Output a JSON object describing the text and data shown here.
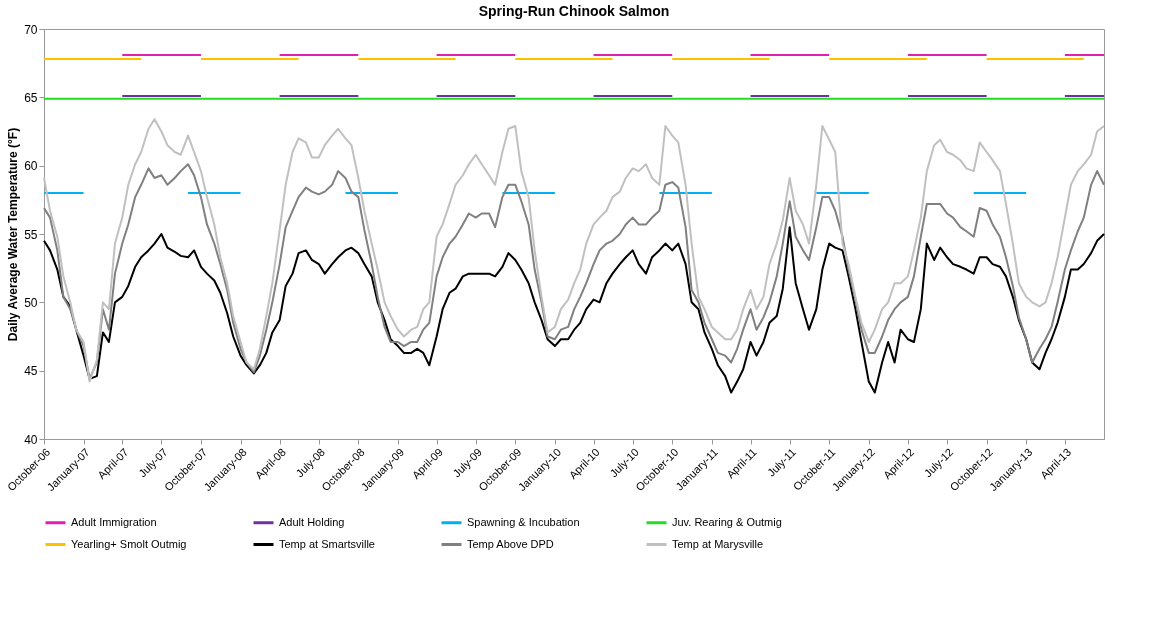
{
  "chart_data": {
    "type": "line",
    "title": "Spring-Run Chinook Salmon",
    "ylabel": "Daily Average Water Temperature (°F)",
    "xlim": [
      "2006-10-01",
      "2013-07-01"
    ],
    "ylim": [
      40,
      70
    ],
    "yticks": [
      40,
      45,
      50,
      55,
      60,
      65,
      70
    ],
    "xticks": [
      {
        "value": "2006-10-01",
        "label": "October-06"
      },
      {
        "value": "2007-01-01",
        "label": "January-07"
      },
      {
        "value": "2007-04-01",
        "label": "April-07"
      },
      {
        "value": "2007-07-01",
        "label": "July-07"
      },
      {
        "value": "2007-10-01",
        "label": "October-07"
      },
      {
        "value": "2008-01-01",
        "label": "January-08"
      },
      {
        "value": "2008-04-01",
        "label": "April-08"
      },
      {
        "value": "2008-07-01",
        "label": "July-08"
      },
      {
        "value": "2008-10-01",
        "label": "October-08"
      },
      {
        "value": "2009-01-01",
        "label": "January-09"
      },
      {
        "value": "2009-04-01",
        "label": "April-09"
      },
      {
        "value": "2009-07-01",
        "label": "July-09"
      },
      {
        "value": "2009-10-01",
        "label": "October-09"
      },
      {
        "value": "2010-01-01",
        "label": "January-10"
      },
      {
        "value": "2010-04-01",
        "label": "April-10"
      },
      {
        "value": "2010-07-01",
        "label": "July-10"
      },
      {
        "value": "2010-10-01",
        "label": "October-10"
      },
      {
        "value": "2011-01-01",
        "label": "January-11"
      },
      {
        "value": "2011-04-01",
        "label": "April-11"
      },
      {
        "value": "2011-07-01",
        "label": "July-11"
      },
      {
        "value": "2011-10-01",
        "label": "October-11"
      },
      {
        "value": "2012-01-01",
        "label": "January-12"
      },
      {
        "value": "2012-04-01",
        "label": "April-12"
      },
      {
        "value": "2012-07-01",
        "label": "July-12"
      },
      {
        "value": "2012-10-01",
        "label": "October-12"
      },
      {
        "value": "2013-01-01",
        "label": "January-13"
      },
      {
        "value": "2013-04-01",
        "label": "April-13"
      }
    ],
    "grid": false,
    "legend": "bottom",
    "x": [
      "2006-10-01",
      "2006-10-15",
      "2006-11-01",
      "2006-11-15",
      "2006-12-01",
      "2006-12-15",
      "2007-01-01",
      "2007-01-15",
      "2007-02-01",
      "2007-02-15",
      "2007-03-01",
      "2007-03-15",
      "2007-04-01",
      "2007-04-15",
      "2007-05-01",
      "2007-05-15",
      "2007-06-01",
      "2007-06-15",
      "2007-07-01",
      "2007-07-15",
      "2007-08-01",
      "2007-08-15",
      "2007-09-01",
      "2007-09-15",
      "2007-10-01",
      "2007-10-15",
      "2007-11-01",
      "2007-11-15",
      "2007-12-01",
      "2007-12-15",
      "2008-01-01",
      "2008-01-15",
      "2008-02-01",
      "2008-02-15",
      "2008-03-01",
      "2008-03-15",
      "2008-04-01",
      "2008-04-15",
      "2008-05-01",
      "2008-05-15",
      "2008-06-01",
      "2008-06-15",
      "2008-07-01",
      "2008-07-15",
      "2008-08-01",
      "2008-08-15",
      "2008-09-01",
      "2008-09-15",
      "2008-10-01",
      "2008-10-15",
      "2008-11-01",
      "2008-11-15",
      "2008-12-01",
      "2008-12-15",
      "2009-01-01",
      "2009-01-15",
      "2009-02-01",
      "2009-02-15",
      "2009-03-01",
      "2009-03-15",
      "2009-04-01",
      "2009-04-15",
      "2009-05-01",
      "2009-05-15",
      "2009-06-01",
      "2009-06-15",
      "2009-07-01",
      "2009-07-15",
      "2009-08-01",
      "2009-08-15",
      "2009-09-01",
      "2009-09-15",
      "2009-10-01",
      "2009-10-15",
      "2009-11-01",
      "2009-11-15",
      "2009-12-01",
      "2009-12-15",
      "2010-01-01",
      "2010-01-15",
      "2010-02-01",
      "2010-02-15",
      "2010-03-01",
      "2010-03-15",
      "2010-04-01",
      "2010-04-15",
      "2010-05-01",
      "2010-05-15",
      "2010-06-01",
      "2010-06-15",
      "2010-07-01",
      "2010-07-15",
      "2010-08-01",
      "2010-08-15",
      "2010-09-01",
      "2010-09-15",
      "2010-10-01",
      "2010-10-15",
      "2010-11-01",
      "2010-11-15",
      "2010-12-01",
      "2010-12-15",
      "2011-01-01",
      "2011-01-15",
      "2011-02-01",
      "2011-02-15",
      "2011-03-01",
      "2011-03-15",
      "2011-04-01",
      "2011-04-15",
      "2011-05-01",
      "2011-05-15",
      "2011-06-01",
      "2011-06-15",
      "2011-07-01",
      "2011-07-15",
      "2011-08-01",
      "2011-08-15",
      "2011-09-01",
      "2011-09-15",
      "2011-10-01",
      "2011-10-15",
      "2011-11-01",
      "2011-11-15",
      "2011-12-01",
      "2011-12-15",
      "2012-01-01",
      "2012-01-15",
      "2012-02-01",
      "2012-02-15",
      "2012-03-01",
      "2012-03-15",
      "2012-04-01",
      "2012-04-15",
      "2012-05-01",
      "2012-05-15",
      "2012-06-01",
      "2012-06-15",
      "2012-07-01",
      "2012-07-15",
      "2012-08-01",
      "2012-08-15",
      "2012-09-01",
      "2012-09-15",
      "2012-10-01",
      "2012-10-15",
      "2012-11-01",
      "2012-11-15",
      "2012-12-01",
      "2012-12-15",
      "2013-01-01",
      "2013-01-15",
      "2013-02-01",
      "2013-02-15",
      "2013-03-01",
      "2013-03-15",
      "2013-04-01",
      "2013-04-15",
      "2013-05-01",
      "2013-05-15",
      "2013-06-01",
      "2013-06-15",
      "2013-07-01"
    ],
    "series": [
      {
        "name": "Adult Immigration",
        "color": "#e020b0",
        "x": [
          "2007-04-01",
          "2007-10-01",
          "2007-12-01",
          "2008-04-01",
          "2008-10-01",
          "2008-12-01",
          "2009-04-01",
          "2009-10-01",
          "2009-12-01",
          "2010-04-01",
          "2010-10-01",
          "2010-12-01",
          "2011-04-01",
          "2011-10-01",
          "2011-12-01",
          "2012-04-01",
          "2012-10-01",
          "2012-12-01",
          "2013-04-01",
          "2013-07-01"
        ],
        "values": [
          68.1,
          68.1,
          null,
          68.1,
          68.1,
          null,
          68.1,
          68.1,
          null,
          68.1,
          68.1,
          null,
          68.1,
          68.1,
          null,
          68.1,
          68.1,
          null,
          68.1,
          68.1
        ]
      },
      {
        "name": "Adult Holding",
        "color": "#7030a0",
        "x": [
          "2007-04-01",
          "2007-10-01",
          "2007-12-01",
          "2008-04-01",
          "2008-10-01",
          "2008-12-01",
          "2009-04-01",
          "2009-10-01",
          "2009-12-01",
          "2010-04-01",
          "2010-10-01",
          "2010-12-01",
          "2011-04-01",
          "2011-10-01",
          "2011-12-01",
          "2012-04-01",
          "2012-10-01",
          "2012-12-01",
          "2013-04-01",
          "2013-07-01"
        ],
        "values": [
          65.1,
          65.1,
          null,
          65.1,
          65.1,
          null,
          65.1,
          65.1,
          null,
          65.1,
          65.1,
          null,
          65.1,
          65.1,
          null,
          65.1,
          65.1,
          null,
          65.1,
          65.1
        ]
      },
      {
        "name": "Spawning & Incubation",
        "color": "#00b0f0",
        "x": [
          "2006-10-01",
          "2007-01-01",
          "2007-05-01",
          "2007-09-01",
          "2008-01-01",
          "2008-05-01",
          "2008-09-01",
          "2009-01-01",
          "2009-05-01",
          "2009-09-01",
          "2010-01-01",
          "2010-05-01",
          "2010-09-01",
          "2011-01-01",
          "2011-05-01",
          "2011-09-01",
          "2012-01-01",
          "2012-05-01",
          "2012-09-01",
          "2013-01-01"
        ],
        "values": [
          58,
          58,
          null,
          58,
          58,
          null,
          58,
          58,
          null,
          58,
          58,
          null,
          58,
          58,
          null,
          58,
          58,
          null,
          58,
          58
        ]
      },
      {
        "name": "Juv. Rearing & Outmig",
        "color": "#22dd22",
        "x": [
          "2006-10-01",
          "2013-07-01"
        ],
        "values": [
          64.9,
          64.9
        ]
      },
      {
        "name": "Yearling+ Smolt Outmig",
        "color": "#ffc000",
        "x": [
          "2006-10-01",
          "2007-05-15",
          "2007-07-01",
          "2007-10-01",
          "2008-05-15",
          "2008-07-01",
          "2008-10-01",
          "2009-05-15",
          "2009-07-01",
          "2009-10-01",
          "2010-05-15",
          "2010-07-01",
          "2010-10-01",
          "2011-05-15",
          "2011-07-01",
          "2011-10-01",
          "2012-05-15",
          "2012-07-01",
          "2012-10-01",
          "2013-05-15"
        ],
        "values": [
          67.8,
          67.8,
          null,
          67.8,
          67.8,
          null,
          67.8,
          67.8,
          null,
          67.8,
          67.8,
          null,
          67.8,
          67.8,
          null,
          67.8,
          67.8,
          null,
          67.8,
          67.8
        ]
      },
      {
        "name": "Temp at Smartsville",
        "color": "#000000",
        "values": [
          54.5,
          53.8,
          52.4,
          50.4,
          49.7,
          48,
          46.1,
          44.4,
          44.6,
          47.8,
          47.1,
          50,
          50.4,
          51.2,
          52.6,
          53.3,
          53.8,
          54.3,
          55,
          54,
          53.7,
          53.4,
          53.3,
          53.8,
          52.6,
          52.1,
          51.6,
          50.7,
          49.2,
          47.5,
          46.1,
          45.4,
          44.8,
          45.4,
          46.3,
          47.8,
          48.7,
          51.2,
          52.1,
          53.6,
          53.8,
          53.1,
          52.8,
          52.1,
          52.8,
          53.3,
          53.8,
          54,
          53.6,
          52.8,
          51.9,
          50,
          48.7,
          47.3,
          46.8,
          46.3,
          46.3,
          46.6,
          46.3,
          45.4,
          47.5,
          49.5,
          50.7,
          51,
          51.9,
          52.1,
          52.1,
          52.1,
          52.1,
          51.9,
          52.6,
          53.6,
          53.1,
          52.4,
          51.4,
          50,
          48.7,
          47.3,
          46.8,
          47.3,
          47.3,
          48,
          48.5,
          49.5,
          50.2,
          50,
          51.4,
          52.1,
          52.8,
          53.3,
          53.8,
          52.8,
          52.1,
          53.3,
          53.8,
          54.3,
          53.8,
          54.3,
          52.8,
          50,
          49.5,
          47.8,
          46.6,
          45.4,
          44.6,
          43.4,
          44.2,
          45.1,
          47.1,
          46.1,
          47.1,
          48.5,
          49,
          51,
          55.5,
          51.4,
          49.5,
          48,
          49.5,
          52.4,
          54.3,
          54,
          53.8,
          51.9,
          49.5,
          47.1,
          44.2,
          43.4,
          45.6,
          47.1,
          45.6,
          48,
          47.3,
          47.1,
          49.5,
          54.3,
          53.1,
          54,
          53.3,
          52.8,
          52.6,
          52.4,
          52.1,
          53.3,
          53.3,
          52.8,
          52.6,
          51.9,
          50.4,
          48.7,
          47.3,
          45.6,
          45.1,
          46.3,
          47.3,
          48.5,
          50.4,
          52.4,
          52.4,
          52.8,
          53.6,
          54.5,
          55
        ]
      },
      {
        "name": "Temp Above DPD",
        "color": "#808080",
        "values": [
          56.9,
          56.2,
          53.8,
          50.4,
          49.5,
          48,
          46.8,
          44.4,
          45.6,
          49.5,
          48,
          52.1,
          54.3,
          55.7,
          57.7,
          58.6,
          59.8,
          59.1,
          59.3,
          58.6,
          59.1,
          59.6,
          60.1,
          59.3,
          57.7,
          55.7,
          54.3,
          52.8,
          50.9,
          48.5,
          46.6,
          45.6,
          44.9,
          46.1,
          48,
          50,
          52.8,
          55.5,
          56.7,
          57.7,
          58.4,
          58.1,
          57.9,
          58.1,
          58.6,
          59.6,
          59.1,
          58.1,
          57.7,
          55.3,
          52.8,
          50.4,
          48.2,
          47.1,
          47.1,
          46.8,
          47.1,
          47.1,
          48,
          48.5,
          51.9,
          53.3,
          54.3,
          54.8,
          55.7,
          56.5,
          56.2,
          56.5,
          56.5,
          55.5,
          57.7,
          58.6,
          58.6,
          57.4,
          55.7,
          52.4,
          50,
          47.5,
          47.3,
          48,
          48.2,
          49.5,
          50.4,
          51.4,
          52.8,
          53.8,
          54.3,
          54.5,
          55,
          55.7,
          56.2,
          55.7,
          55.7,
          56.2,
          56.7,
          58.6,
          58.8,
          58.4,
          55.5,
          50.9,
          50,
          48.5,
          47.3,
          46.3,
          46.1,
          45.6,
          46.6,
          48,
          49.5,
          48,
          48.9,
          50,
          51.9,
          54.3,
          57.4,
          54.8,
          53.8,
          53.1,
          55.5,
          57.7,
          57.7,
          56.7,
          54.8,
          52.4,
          50.2,
          48,
          46.3,
          46.3,
          47.5,
          48.7,
          49.5,
          50,
          50.4,
          51.9,
          54.8,
          57.2,
          57.2,
          57.2,
          56.5,
          56.2,
          55.5,
          55.2,
          54.8,
          56.9,
          56.7,
          55.7,
          54.8,
          53.3,
          51.2,
          48.9,
          47.3,
          45.6,
          46.6,
          47.3,
          48.2,
          50,
          52.4,
          53.8,
          55.2,
          56.2,
          58.6,
          59.6,
          58.6
        ]
      },
      {
        "name": "Temp at Marysville",
        "color": "#c0c0c0",
        "values": [
          59.1,
          56.7,
          54.8,
          51.9,
          50,
          48,
          47.1,
          44.2,
          45.8,
          50,
          49.5,
          54.3,
          56.2,
          58.6,
          60.1,
          61,
          62.7,
          63.4,
          62.5,
          61.5,
          61,
          60.8,
          62.2,
          61,
          59.6,
          57.7,
          55.7,
          53.3,
          51.4,
          49,
          47.1,
          45.6,
          45.1,
          46.6,
          49,
          51.4,
          55.3,
          58.6,
          61,
          62,
          61.7,
          60.6,
          60.6,
          61.5,
          62.2,
          62.7,
          62,
          61.5,
          59.1,
          56.7,
          54.3,
          52.4,
          50,
          49,
          48,
          47.5,
          48,
          48.2,
          49.5,
          50,
          54.8,
          55.7,
          57.2,
          58.6,
          59.3,
          60.1,
          60.8,
          60.1,
          59.3,
          58.6,
          61,
          62.7,
          62.9,
          59.6,
          57.7,
          53.8,
          50.4,
          47.8,
          48.2,
          49.5,
          50.2,
          51.4,
          52.4,
          54.3,
          55.7,
          56.2,
          56.7,
          57.7,
          58.1,
          59.1,
          59.8,
          59.6,
          60.1,
          59.1,
          58.6,
          62.9,
          62.2,
          61.7,
          58.6,
          54.3,
          50.4,
          49.5,
          48.2,
          47.8,
          47.3,
          47.3,
          48,
          49.5,
          50.9,
          49.5,
          50.4,
          52.8,
          54.3,
          56,
          59.1,
          56.7,
          55.7,
          54.3,
          58.6,
          62.9,
          61.9,
          61,
          54.3,
          52.8,
          50.4,
          48.5,
          47.1,
          48,
          49.5,
          50,
          51.4,
          51.4,
          51.9,
          53.8,
          56.2,
          59.6,
          61.5,
          61.9,
          61,
          60.8,
          60.4,
          59.8,
          59.6,
          61.7,
          61,
          60.4,
          59.6,
          57.2,
          54.3,
          51.4,
          50.4,
          50,
          49.7,
          50,
          51.4,
          53.3,
          56.2,
          58.6,
          59.6,
          60.1,
          60.8,
          62.5,
          62.9
        ]
      }
    ]
  }
}
